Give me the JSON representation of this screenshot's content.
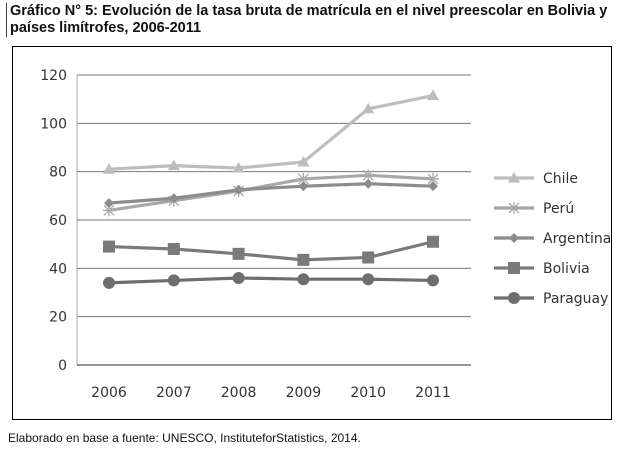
{
  "title": "Gráfico N° 5: Evolución de la tasa bruta de matrícula en el nivel preescolar en Bolivia y países limítrofes, 2006-2011",
  "source": "Elaborado en base a fuente: UNESCO, InstituteforStatistics, 2014.",
  "chart_data": {
    "type": "line",
    "title": "Evolución de la tasa bruta de matrícula en el nivel preescolar en Bolivia y países limítrofes, 2006-2011",
    "xlabel": "",
    "ylabel": "",
    "categories": [
      "2006",
      "2007",
      "2008",
      "2009",
      "2010",
      "2011"
    ],
    "ylim": [
      0,
      120
    ],
    "yticks": [
      "0",
      "20",
      "40",
      "60",
      "80",
      "100",
      "120"
    ],
    "grid": true,
    "legend_position": "right",
    "series": [
      {
        "name": "Chile",
        "marker": "triangle",
        "color": "#bdbdbd",
        "values": [
          81,
          82.5,
          81.5,
          84,
          106,
          111.5
        ]
      },
      {
        "name": "Perú",
        "marker": "star",
        "color": "#a8a8a8",
        "values": [
          64,
          68,
          72,
          77,
          78.5,
          77
        ]
      },
      {
        "name": "Argentina",
        "marker": "diamond",
        "color": "#8c8c8c",
        "values": [
          67,
          69,
          72.5,
          74,
          75,
          74
        ]
      },
      {
        "name": "Bolivia",
        "marker": "square",
        "color": "#7a7a7a",
        "values": [
          49,
          48,
          46,
          43.5,
          44.5,
          51
        ]
      },
      {
        "name": "Paraguay",
        "marker": "circle",
        "color": "#6e6e6e",
        "values": [
          34,
          35,
          36,
          35.5,
          35.5,
          35
        ]
      }
    ]
  }
}
